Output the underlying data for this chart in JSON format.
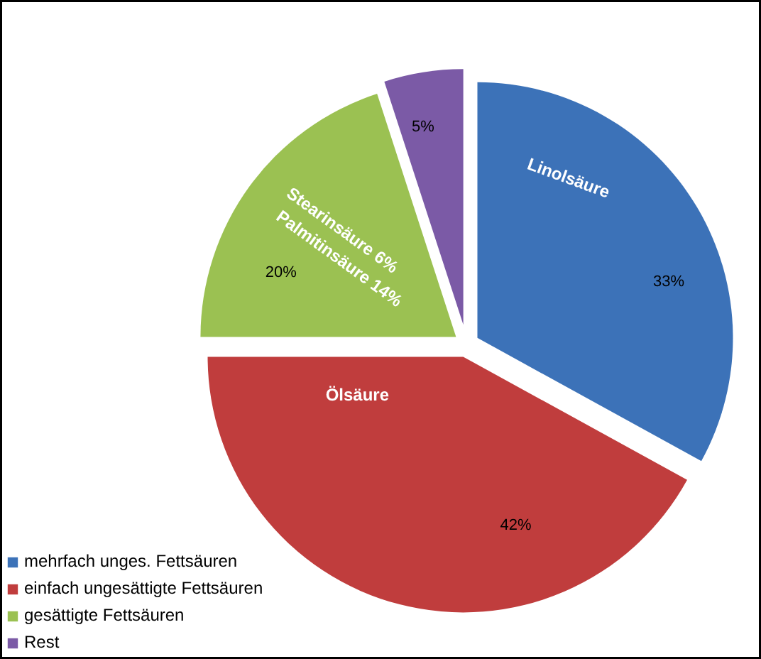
{
  "chart_data": {
    "type": "pie",
    "categories": [
      "mehrfach unges. Fettsäuren",
      "einfach ungesättigte Fettsäuren",
      "gesättigte Fettsäuren",
      "Rest"
    ],
    "values": [
      33,
      42,
      20,
      5
    ],
    "colors": [
      "#3c72b8",
      "#c03d3d",
      "#9bc152",
      "#7b5aa6"
    ],
    "value_labels": [
      "33%",
      "42%",
      "20%",
      "5%"
    ],
    "annotations": [
      "Linolsäure",
      "Ölsäure",
      "Stearinsäure 6%",
      "Palmitinsäure 14%"
    ],
    "legend": "bottom left"
  }
}
